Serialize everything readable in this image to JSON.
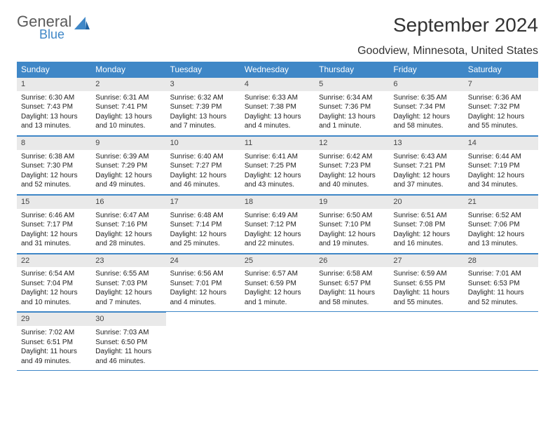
{
  "brand": {
    "general": "General",
    "blue": "Blue"
  },
  "title": "September 2024",
  "location": "Goodview, Minnesota, United States",
  "colors": {
    "header_bg": "#3f87c7",
    "header_text": "#ffffff",
    "daynum_bg": "#e9e9e9",
    "row_border": "#3f87c7",
    "body_text": "#222222",
    "logo_gray": "#5a5a5a",
    "logo_blue": "#3f87c7",
    "page_bg": "#ffffff"
  },
  "typography": {
    "title_fontsize": 28,
    "location_fontsize": 16,
    "weekday_fontsize": 12,
    "daynum_fontsize": 11,
    "body_fontsize": 10
  },
  "weekdays": [
    "Sunday",
    "Monday",
    "Tuesday",
    "Wednesday",
    "Thursday",
    "Friday",
    "Saturday"
  ],
  "weeks": [
    [
      {
        "n": "1",
        "sunrise": "6:30 AM",
        "sunset": "7:43 PM",
        "daylight": "13 hours and 13 minutes."
      },
      {
        "n": "2",
        "sunrise": "6:31 AM",
        "sunset": "7:41 PM",
        "daylight": "13 hours and 10 minutes."
      },
      {
        "n": "3",
        "sunrise": "6:32 AM",
        "sunset": "7:39 PM",
        "daylight": "13 hours and 7 minutes."
      },
      {
        "n": "4",
        "sunrise": "6:33 AM",
        "sunset": "7:38 PM",
        "daylight": "13 hours and 4 minutes."
      },
      {
        "n": "5",
        "sunrise": "6:34 AM",
        "sunset": "7:36 PM",
        "daylight": "13 hours and 1 minute."
      },
      {
        "n": "6",
        "sunrise": "6:35 AM",
        "sunset": "7:34 PM",
        "daylight": "12 hours and 58 minutes."
      },
      {
        "n": "7",
        "sunrise": "6:36 AM",
        "sunset": "7:32 PM",
        "daylight": "12 hours and 55 minutes."
      }
    ],
    [
      {
        "n": "8",
        "sunrise": "6:38 AM",
        "sunset": "7:30 PM",
        "daylight": "12 hours and 52 minutes."
      },
      {
        "n": "9",
        "sunrise": "6:39 AM",
        "sunset": "7:29 PM",
        "daylight": "12 hours and 49 minutes."
      },
      {
        "n": "10",
        "sunrise": "6:40 AM",
        "sunset": "7:27 PM",
        "daylight": "12 hours and 46 minutes."
      },
      {
        "n": "11",
        "sunrise": "6:41 AM",
        "sunset": "7:25 PM",
        "daylight": "12 hours and 43 minutes."
      },
      {
        "n": "12",
        "sunrise": "6:42 AM",
        "sunset": "7:23 PM",
        "daylight": "12 hours and 40 minutes."
      },
      {
        "n": "13",
        "sunrise": "6:43 AM",
        "sunset": "7:21 PM",
        "daylight": "12 hours and 37 minutes."
      },
      {
        "n": "14",
        "sunrise": "6:44 AM",
        "sunset": "7:19 PM",
        "daylight": "12 hours and 34 minutes."
      }
    ],
    [
      {
        "n": "15",
        "sunrise": "6:46 AM",
        "sunset": "7:17 PM",
        "daylight": "12 hours and 31 minutes."
      },
      {
        "n": "16",
        "sunrise": "6:47 AM",
        "sunset": "7:16 PM",
        "daylight": "12 hours and 28 minutes."
      },
      {
        "n": "17",
        "sunrise": "6:48 AM",
        "sunset": "7:14 PM",
        "daylight": "12 hours and 25 minutes."
      },
      {
        "n": "18",
        "sunrise": "6:49 AM",
        "sunset": "7:12 PM",
        "daylight": "12 hours and 22 minutes."
      },
      {
        "n": "19",
        "sunrise": "6:50 AM",
        "sunset": "7:10 PM",
        "daylight": "12 hours and 19 minutes."
      },
      {
        "n": "20",
        "sunrise": "6:51 AM",
        "sunset": "7:08 PM",
        "daylight": "12 hours and 16 minutes."
      },
      {
        "n": "21",
        "sunrise": "6:52 AM",
        "sunset": "7:06 PM",
        "daylight": "12 hours and 13 minutes."
      }
    ],
    [
      {
        "n": "22",
        "sunrise": "6:54 AM",
        "sunset": "7:04 PM",
        "daylight": "12 hours and 10 minutes."
      },
      {
        "n": "23",
        "sunrise": "6:55 AM",
        "sunset": "7:03 PM",
        "daylight": "12 hours and 7 minutes."
      },
      {
        "n": "24",
        "sunrise": "6:56 AM",
        "sunset": "7:01 PM",
        "daylight": "12 hours and 4 minutes."
      },
      {
        "n": "25",
        "sunrise": "6:57 AM",
        "sunset": "6:59 PM",
        "daylight": "12 hours and 1 minute."
      },
      {
        "n": "26",
        "sunrise": "6:58 AM",
        "sunset": "6:57 PM",
        "daylight": "11 hours and 58 minutes."
      },
      {
        "n": "27",
        "sunrise": "6:59 AM",
        "sunset": "6:55 PM",
        "daylight": "11 hours and 55 minutes."
      },
      {
        "n": "28",
        "sunrise": "7:01 AM",
        "sunset": "6:53 PM",
        "daylight": "11 hours and 52 minutes."
      }
    ],
    [
      {
        "n": "29",
        "sunrise": "7:02 AM",
        "sunset": "6:51 PM",
        "daylight": "11 hours and 49 minutes."
      },
      {
        "n": "30",
        "sunrise": "7:03 AM",
        "sunset": "6:50 PM",
        "daylight": "11 hours and 46 minutes."
      },
      null,
      null,
      null,
      null,
      null
    ]
  ],
  "labels": {
    "sunrise": "Sunrise:",
    "sunset": "Sunset:",
    "daylight": "Daylight:"
  }
}
